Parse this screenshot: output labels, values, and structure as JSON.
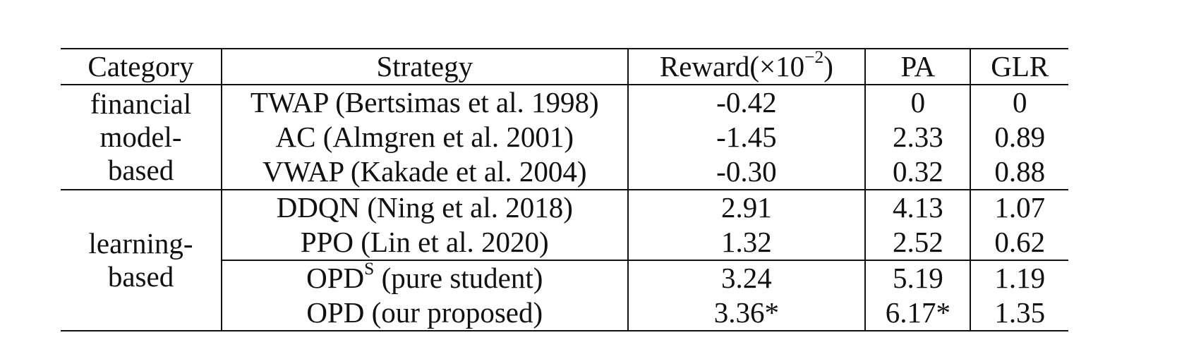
{
  "table": {
    "headers": {
      "category": "Category",
      "strategy": "Strategy",
      "reward_base": "Reward(×10",
      "reward_exp": "−2",
      "reward_close": ")",
      "pa": "PA",
      "glr": "GLR"
    },
    "groups": [
      {
        "category_lines": [
          "financial",
          "model-",
          "based"
        ],
        "rows": [
          {
            "strategy": "TWAP (Bertsimas et al. 1998)",
            "reward": "-0.42",
            "pa": "0",
            "glr": "0"
          },
          {
            "strategy": "AC (Almgren et al. 2001)",
            "reward": "-1.45",
            "pa": "2.33",
            "glr": "0.89"
          },
          {
            "strategy": "VWAP (Kakade et al. 2004)",
            "reward": "-0.30",
            "pa": "0.32",
            "glr": "0.88"
          }
        ]
      },
      {
        "category_lines": [
          "learning-",
          "based"
        ],
        "rows": [
          {
            "strategy": "DDQN (Ning et al. 2018)",
            "reward": "2.91",
            "pa": "4.13",
            "glr": "1.07"
          },
          {
            "strategy": "PPO (Lin et al. 2020)",
            "reward": "1.32",
            "pa": "2.52",
            "glr": "0.62"
          },
          {
            "strategy_main": "OPD",
            "strategy_sup": "S",
            "strategy_rest": " (pure student)",
            "reward": "3.24",
            "pa": "5.19",
            "glr": "1.19"
          },
          {
            "strategy": "OPD (our proposed)",
            "reward": "3.36*",
            "pa": "6.17*",
            "glr": "1.35",
            "bold": true
          }
        ]
      }
    ]
  }
}
